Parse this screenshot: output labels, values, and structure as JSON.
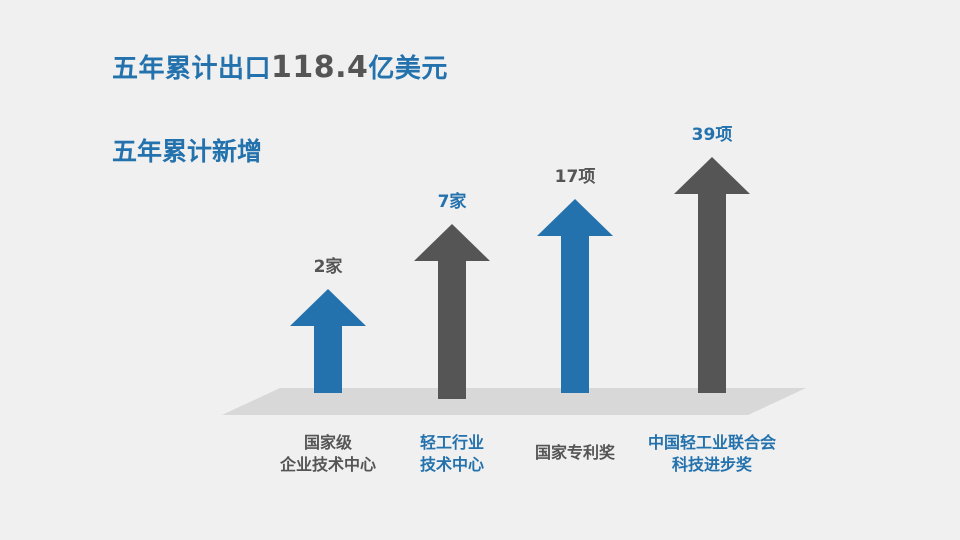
{
  "slide": {
    "headline": {
      "prefix": "五年累计出口",
      "amount": "118.4",
      "suffix": "亿美元"
    },
    "subheading": "五年累计新增"
  },
  "colors": {
    "blue": "#2472ad",
    "gray": "#555555",
    "platform": "#d8d8d8"
  },
  "items": [
    {
      "value": "2家",
      "count": 2,
      "label_lines": [
        "国家级",
        "企业技术中心"
      ],
      "color": "gray",
      "arrow_color": "blue"
    },
    {
      "value": "7家",
      "count": 7,
      "label_lines": [
        "轻工行业",
        "技术中心"
      ],
      "color": "blue",
      "arrow_color": "gray"
    },
    {
      "value": "17项",
      "count": 17,
      "label_lines": [
        "国家专利奖"
      ],
      "color": "gray",
      "arrow_color": "blue"
    },
    {
      "value": "39项",
      "count": 39,
      "label_lines": [
        "中国轻工业联合会",
        "科技进步奖"
      ],
      "color": "blue",
      "arrow_color": "gray"
    }
  ]
}
